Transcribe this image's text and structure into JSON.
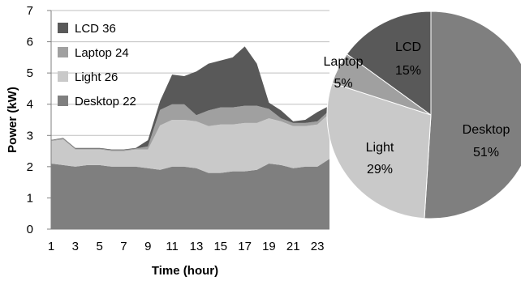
{
  "chart_data": [
    {
      "type": "area",
      "stacked": true,
      "xlabel": "Time (hour)",
      "ylabel": "Power (kW)",
      "xlim": [
        1,
        24
      ],
      "ylim": [
        0,
        7
      ],
      "x_ticks": [
        1,
        3,
        5,
        7,
        9,
        11,
        13,
        15,
        17,
        19,
        21,
        23
      ],
      "y_ticks": [
        0,
        1,
        2,
        3,
        4,
        5,
        6,
        7
      ],
      "x": [
        1,
        2,
        3,
        4,
        5,
        6,
        7,
        8,
        9,
        10,
        11,
        12,
        13,
        14,
        15,
        16,
        17,
        18,
        19,
        20,
        21,
        22,
        23,
        24
      ],
      "grid": "horizontal",
      "legend_position": "top-left",
      "series": [
        {
          "name": "Desktop",
          "legend_label": "Desktop 22",
          "color": "#7f7f7f",
          "values": [
            2.1,
            2.05,
            2.0,
            2.05,
            2.05,
            2.0,
            2.0,
            2.0,
            1.95,
            1.9,
            2.0,
            2.0,
            1.95,
            1.8,
            1.8,
            1.85,
            1.85,
            1.9,
            2.1,
            2.05,
            1.95,
            2.0,
            2.0,
            2.25
          ]
        },
        {
          "name": "Light",
          "legend_label": "Light 26",
          "color": "#c9c9c9",
          "values": [
            0.72,
            0.82,
            0.55,
            0.5,
            0.5,
            0.5,
            0.5,
            0.55,
            0.6,
            1.42,
            1.5,
            1.5,
            1.5,
            1.5,
            1.55,
            1.5,
            1.55,
            1.5,
            1.45,
            1.4,
            1.35,
            1.3,
            1.35,
            1.45
          ]
        },
        {
          "name": "Laptop",
          "legend_label": "Laptop 24",
          "color": "#a0a0a0",
          "values": [
            0.03,
            0.03,
            0.03,
            0.03,
            0.03,
            0.03,
            0.03,
            0.03,
            0.1,
            0.5,
            0.5,
            0.5,
            0.2,
            0.5,
            0.55,
            0.55,
            0.55,
            0.55,
            0.3,
            0.1,
            0.1,
            0.1,
            0.1,
            0.1
          ]
        },
        {
          "name": "LCD",
          "legend_label": "LCD 36",
          "color": "#595959",
          "values": [
            0.01,
            0.02,
            0.02,
            0.02,
            0.02,
            0.02,
            0.02,
            0.02,
            0.2,
            0.28,
            0.95,
            0.9,
            1.4,
            1.5,
            1.5,
            1.6,
            1.9,
            1.35,
            0.2,
            0.25,
            0.05,
            0.1,
            0.3,
            0.15
          ]
        }
      ]
    },
    {
      "type": "pie",
      "slices": [
        {
          "name": "Desktop",
          "value": 51,
          "label": "Desktop",
          "pct": "51%",
          "color": "#7f7f7f"
        },
        {
          "name": "Light",
          "value": 29,
          "label": "Light",
          "pct": "29%",
          "color": "#c9c9c9"
        },
        {
          "name": "Laptop",
          "value": 5,
          "label": "Laptop",
          "pct": "5%",
          "color": "#a0a0a0"
        },
        {
          "name": "LCD",
          "value": 15,
          "label": "LCD",
          "pct": "15%",
          "color": "#595959"
        }
      ]
    }
  ]
}
